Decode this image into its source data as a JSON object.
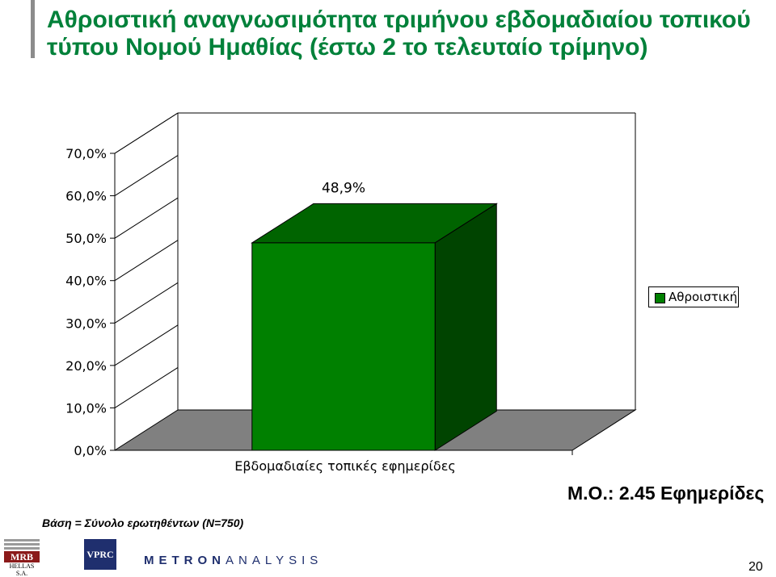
{
  "title": "Αθροιστική αναγνωσιμότητα τριμήνου εβδομαδιαίου τοπικού τύπου Νομού Ημαθίας (έστω 2 το τελευταίο τρίμηνο)",
  "chart_data": {
    "type": "bar",
    "categories": [
      "Εβδομαδιαίες τοπικές εφημερίδες"
    ],
    "series": [
      {
        "name": "Αθροιστική",
        "values": [
          48.9
        ],
        "labels": [
          "48,9%"
        ],
        "color": "#008000"
      }
    ],
    "yticks": [
      "0,0%",
      "10,0%",
      "20,0%",
      "30,0%",
      "40,0%",
      "50,0%",
      "60,0%",
      "70,0%"
    ],
    "ylim": [
      0,
      70
    ],
    "grid": false,
    "legend": "right",
    "colors": {
      "front": "#008000",
      "top": "#006400",
      "side": "#004400",
      "floor": "#808080"
    }
  },
  "footer": {
    "mo": "Μ.Ο.: 2.45 Εφημερίδες",
    "base": "Βάση = Σύνολο ερωτηθέντων (N=750)",
    "page": "20"
  },
  "logos": {
    "mrb": "MRB",
    "mrb_sub": "HELLAS S.A.",
    "vprc": "VPRC",
    "metron_a": "METRON",
    "metron_b": "ANALYSIS"
  }
}
